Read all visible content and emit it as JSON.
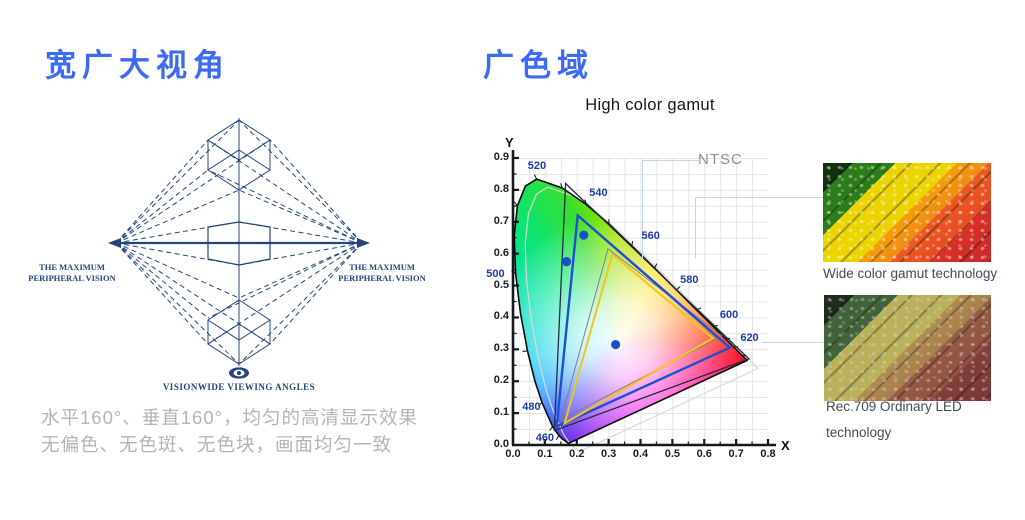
{
  "left_section": {
    "title": "宽广大视角",
    "diagram": {
      "left_label_line1": "THE MAXIMUM",
      "left_label_line2": "PERIPHERAL VISION",
      "right_label_line1": "THE MAXIMUM",
      "right_label_line2": "PERIPHERAL VISION",
      "caption": "VISIONWIDE VIEWING ANGLES"
    },
    "description_line1": "水平160°、垂直160°，均匀的高清显示效果",
    "description_line2": "无偏色、无色斑、无色块，画面均匀一致"
  },
  "right_section": {
    "title": "广色域",
    "images": [
      {
        "caption": "Wide color gamut technology"
      },
      {
        "caption_line1": "Rec.709 Ordinary LED",
        "caption_line2": "technology"
      }
    ]
  },
  "chart_data": {
    "type": "area",
    "title": "High color gamut",
    "annotation": "NTSC",
    "xlabel": "X",
    "ylabel": "Y",
    "xlim": [
      0,
      0.8
    ],
    "ylim": [
      0,
      0.9
    ],
    "grid": true,
    "x_tick_labels": [
      "0.0",
      "0.1",
      "0.2",
      "0.3",
      "0.4",
      "0.5",
      "0.6",
      "0.7",
      "0.8"
    ],
    "y_tick_labels": [
      "0.0",
      "0.1",
      "0.2",
      "0.3",
      "0.4",
      "0.5",
      "0.6",
      "0.7",
      "0.8",
      "0.9"
    ],
    "white_point": [
      0.33,
      0.33
    ],
    "locus": [
      [
        0.1741,
        0.005
      ],
      [
        0.1566,
        0.0177
      ],
      [
        0.144,
        0.0297
      ],
      [
        0.1241,
        0.0578
      ],
      [
        0.0913,
        0.1327
      ],
      [
        0.0687,
        0.2007
      ],
      [
        0.0454,
        0.295
      ],
      [
        0.0235,
        0.4127
      ],
      [
        0.0082,
        0.5384
      ],
      [
        0.0039,
        0.6548
      ],
      [
        0.0139,
        0.7502
      ],
      [
        0.0389,
        0.812
      ],
      [
        0.0743,
        0.8338
      ],
      [
        0.1547,
        0.8059
      ],
      [
        0.2296,
        0.7543
      ],
      [
        0.3016,
        0.6923
      ],
      [
        0.3731,
        0.6245
      ],
      [
        0.4441,
        0.5547
      ],
      [
        0.5125,
        0.4866
      ],
      [
        0.5752,
        0.4242
      ],
      [
        0.627,
        0.3725
      ],
      [
        0.6658,
        0.334
      ],
      [
        0.6915,
        0.3083
      ],
      [
        0.719,
        0.2809
      ],
      [
        0.7347,
        0.2653
      ]
    ],
    "locus_ticks": [
      [
        0.144,
        0.0297
      ],
      [
        0.1241,
        0.0578
      ],
      [
        0.0913,
        0.1327
      ],
      [
        0.0454,
        0.295
      ],
      [
        0.0082,
        0.5384
      ],
      [
        0.0139,
        0.7502
      ],
      [
        0.0743,
        0.8338
      ],
      [
        0.1547,
        0.8059
      ],
      [
        0.2296,
        0.7543
      ],
      [
        0.3016,
        0.6923
      ],
      [
        0.3731,
        0.6245
      ],
      [
        0.4441,
        0.5547
      ],
      [
        0.5125,
        0.4866
      ],
      [
        0.5752,
        0.4242
      ],
      [
        0.627,
        0.3725
      ],
      [
        0.6658,
        0.334
      ],
      [
        0.6915,
        0.3083
      ],
      [
        0.719,
        0.2809
      ]
    ],
    "wavelength_labels": [
      {
        "text": "520",
        "x": 0.075,
        "y": 0.875
      },
      {
        "text": "540",
        "x": 0.268,
        "y": 0.79
      },
      {
        "text": "560",
        "x": 0.432,
        "y": 0.655
      },
      {
        "text": "580",
        "x": 0.553,
        "y": 0.518
      },
      {
        "text": "600",
        "x": 0.678,
        "y": 0.408
      },
      {
        "text": "620",
        "x": 0.742,
        "y": 0.335
      },
      {
        "text": "500",
        "x": -0.055,
        "y": 0.535
      },
      {
        "text": "480",
        "x": 0.058,
        "y": 0.118
      },
      {
        "text": "460",
        "x": 0.1,
        "y": 0.022
      }
    ],
    "triangles": [
      {
        "name": "NTSC",
        "color": "#232b3c",
        "width": 1.3,
        "points": [
          [
            0.165,
            0.82
          ],
          [
            0.74,
            0.27
          ],
          [
            0.13,
            0.045
          ]
        ]
      },
      {
        "name": "Rec.709 outline",
        "color": "#78828e",
        "width": 1,
        "points": [
          [
            0.298,
            0.615
          ],
          [
            0.655,
            0.342
          ],
          [
            0.15,
            0.078
          ]
        ]
      },
      {
        "name": "Wide color gamut",
        "color": "#1d4fd4",
        "width": 2.4,
        "points": [
          [
            0.203,
            0.72
          ],
          [
            0.68,
            0.305
          ],
          [
            0.137,
            0.058
          ]
        ]
      },
      {
        "name": "Rec.709",
        "color": "#f3c51c",
        "width": 2,
        "points": [
          [
            0.312,
            0.598
          ],
          [
            0.627,
            0.335
          ],
          [
            0.162,
            0.068
          ]
        ]
      }
    ],
    "points": [
      [
        0.222,
        0.658
      ],
      [
        0.168,
        0.575
      ],
      [
        0.322,
        0.315
      ]
    ],
    "point_color": "#1a52c6"
  },
  "colors": {
    "accent_blue": "#3d6af2",
    "diagram_navy": "#24457f",
    "muted_text": "#b4b4b4",
    "caption_text": "#414b57",
    "callout_line": "#c3d7ec",
    "wavelength_label": "#1c3da6",
    "ntsc_text": "#87929f"
  }
}
